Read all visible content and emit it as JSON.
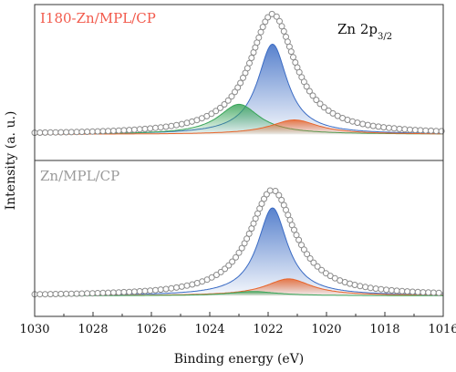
{
  "chart_data": {
    "type": "line",
    "xlabel": "Binding energy (eV)",
    "ylabel": "Intensity (a. u.)",
    "xlim": [
      1030,
      1016
    ],
    "x_ticks": [
      "1030",
      "1028",
      "1026",
      "1024",
      "1022",
      "1020",
      "1018",
      "1016"
    ],
    "x_reversed": true,
    "grid": false,
    "annotation": {
      "base": "Zn 2p",
      "sub": "3/2"
    },
    "panels": [
      {
        "label": "I180-Zn/MPL/CP",
        "label_color": "#f25a4c",
        "baseline": 0.02,
        "envelope": {
          "center": 1021.85,
          "amplitude": 1.0,
          "width": 0.95
        },
        "series": [
          {
            "center": 1021.85,
            "amplitude": 0.75,
            "width": 0.62,
            "color": "#3a6bc4"
          },
          {
            "center": 1023.0,
            "amplitude": 0.25,
            "width": 0.85,
            "color": "#3aa55a"
          },
          {
            "center": 1021.1,
            "amplitude": 0.12,
            "width": 1.0,
            "color": "#e8642a"
          }
        ]
      },
      {
        "label": "Zn/MPL/CP",
        "label_color": "#9a9a9a",
        "baseline": 0.02,
        "envelope": {
          "center": 1021.85,
          "amplitude": 0.88,
          "width": 0.95
        },
        "series": [
          {
            "center": 1021.85,
            "amplitude": 0.73,
            "width": 0.62,
            "color": "#3a6bc4"
          },
          {
            "center": 1021.3,
            "amplitude": 0.14,
            "width": 0.95,
            "color": "#e8642a"
          },
          {
            "center": 1022.5,
            "amplitude": 0.035,
            "width": 1.0,
            "color": "#3aa55a"
          }
        ]
      }
    ]
  }
}
